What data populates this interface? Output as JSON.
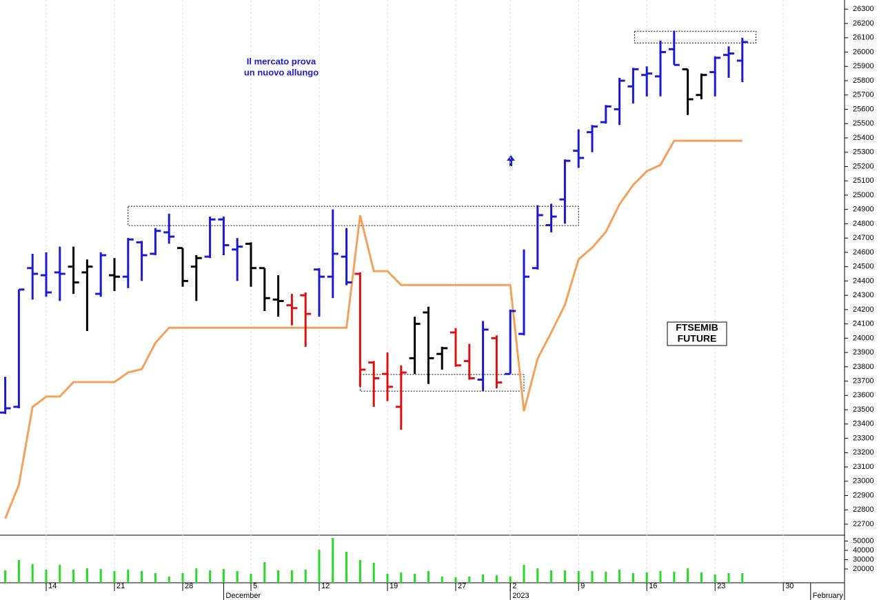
{
  "chart_data": [
    {
      "type": "ohlc",
      "categories": [
        null,
        null,
        null,
        "14",
        null,
        null,
        null,
        null,
        "21",
        null,
        null,
        null,
        null,
        "28",
        null,
        null,
        null,
        null,
        "5",
        null,
        null,
        null,
        null,
        "12",
        null,
        null,
        null,
        null,
        "19",
        null,
        null,
        null,
        null,
        "27",
        null,
        null,
        null,
        "2",
        null,
        null,
        null,
        null,
        "9",
        null,
        null,
        null,
        null,
        "16",
        null,
        null,
        null,
        null,
        "23",
        null,
        null,
        null,
        null,
        "30",
        null,
        null
      ],
      "months": [
        {
          "label": "December",
          "category": 16
        },
        {
          "label": "2023",
          "category": 37
        },
        {
          "label": "February",
          "category": 59
        }
      ],
      "open": [
        23480,
        23520,
        24490,
        24440,
        24460,
        24500,
        24460,
        24310,
        24440,
        24430,
        24670,
        24590,
        24740,
        24630,
        24500,
        24570,
        24830,
        24620,
        24660,
        24490,
        24270,
        24230,
        24300,
        24480,
        24430,
        24570,
        24450,
        23830,
        23750,
        23520,
        23860,
        24180,
        23890,
        24040,
        23840,
        23710,
        24000,
        23750,
        24030,
        24490,
        24790,
        24970,
        25310,
        25440,
        25510,
        25600,
        25760,
        25840,
        25830,
        26020,
        25880,
        25700,
        25860,
        25980,
        25940,
        null,
        null,
        null,
        null,
        null
      ],
      "high": [
        23730,
        24340,
        24590,
        24600,
        24640,
        24640,
        24550,
        24600,
        24560,
        24700,
        24680,
        24770,
        24870,
        24630,
        24580,
        24850,
        24850,
        24700,
        24670,
        24490,
        24440,
        24310,
        24320,
        24490,
        24900,
        24770,
        24460,
        23840,
        23900,
        23810,
        24150,
        24220,
        23940,
        24070,
        23960,
        24120,
        24020,
        24200,
        24620,
        24930,
        24940,
        25250,
        25460,
        25490,
        25630,
        25820,
        25890,
        25900,
        26080,
        26150,
        25880,
        25850,
        25970,
        26040,
        26100,
        null,
        null,
        null,
        null,
        null
      ],
      "low": [
        23470,
        23510,
        24270,
        24290,
        24260,
        24310,
        24050,
        24290,
        24330,
        24350,
        24400,
        24580,
        24660,
        24360,
        24260,
        24560,
        24580,
        24400,
        24360,
        24190,
        24150,
        24090,
        23940,
        24150,
        24280,
        24370,
        23660,
        23520,
        23560,
        23360,
        23750,
        23680,
        23780,
        23800,
        23710,
        23630,
        23650,
        23750,
        24020,
        24480,
        24740,
        24800,
        25190,
        25300,
        25500,
        25490,
        25640,
        25690,
        25690,
        25910,
        25560,
        25670,
        25690,
        25820,
        25790,
        null,
        null,
        null,
        null,
        null
      ],
      "close": [
        23510,
        24340,
        24450,
        24320,
        24450,
        24390,
        24500,
        24580,
        24430,
        24690,
        24580,
        24750,
        24710,
        24400,
        24560,
        24830,
        24650,
        24640,
        24490,
        24280,
        24260,
        24210,
        24170,
        24430,
        24590,
        24390,
        23780,
        23720,
        23660,
        23760,
        24100,
        23860,
        23930,
        23810,
        23720,
        24060,
        23690,
        24190,
        24430,
        24860,
        24850,
        25240,
        25260,
        25480,
        25620,
        25800,
        25880,
        25850,
        26000,
        25910,
        25670,
        25840,
        25960,
        25990,
        26070,
        null,
        null,
        null,
        null,
        null
      ],
      "colors": [
        "#1a1ad6",
        "#1a1ad6",
        "#1a1ad6",
        "#1a1ad6",
        "#1a1ad6",
        "#000000",
        "#000000",
        "#1a1ad6",
        "#000000",
        "#1a1ad6",
        "#1a1ad6",
        "#1a1ad6",
        "#1a1ad6",
        "#000000",
        "#000000",
        "#1a1ad6",
        "#1a1ad6",
        "#1a1ad6",
        "#000000",
        "#000000",
        "#000000",
        "#e01010",
        "#e01010",
        "#1a1ad6",
        "#1a1ad6",
        "#1a1ad6",
        "#e01010",
        "#e01010",
        "#e01010",
        "#e01010",
        "#000000",
        "#000000",
        "#000000",
        "#e01010",
        "#e01010",
        "#1a1ad6",
        "#e01010",
        "#1a1ad6",
        "#1a1ad6",
        "#1a1ad6",
        "#1a1ad6",
        "#1a1ad6",
        "#1a1ad6",
        "#1a1ad6",
        "#1a1ad6",
        "#1a1ad6",
        "#1a1ad6",
        "#1a1ad6",
        "#1a1ad6",
        "#1a1ad6",
        "#000000",
        "#000000",
        "#1a1ad6",
        "#1a1ad6",
        "#1a1ad6",
        null,
        null,
        null,
        null,
        null
      ],
      "line": {
        "color": "#f5a05a",
        "values": [
          22739,
          22975,
          23519,
          23592,
          23592,
          23693,
          23693,
          23693,
          23693,
          23760,
          23784,
          23967,
          24073,
          24073,
          24073,
          24073,
          24073,
          24073,
          24073,
          24073,
          24073,
          24073,
          24073,
          24073,
          24073,
          24073,
          24859,
          24469,
          24469,
          24372,
          24372,
          24372,
          24372,
          24372,
          24372,
          24372,
          24372,
          24372,
          23490,
          23857,
          24040,
          24233,
          24551,
          24633,
          24743,
          24936,
          25071,
          25167,
          25211,
          25380,
          25380,
          25380,
          25380,
          25380,
          25380,
          null,
          null,
          null,
          null,
          null
        ]
      },
      "zones": [
        {
          "start": 9,
          "end": 42,
          "high": 24922,
          "low": 24787
        },
        {
          "start": 26,
          "end": 38,
          "high": 23746,
          "low": 23630
        },
        {
          "start": 46.1,
          "end": 55,
          "high": 26146,
          "low": 26064
        }
      ],
      "annotations": [
        "Il mercato prova",
        "un nuovo allungo"
      ],
      "label_box": [
        "FTSEMIB",
        "FUTURE"
      ],
      "ylim": [
        22623,
        26364
      ],
      "yticks": [
        22700,
        22800,
        22900,
        23000,
        23100,
        23200,
        23300,
        23400,
        23500,
        23600,
        23700,
        23800,
        23900,
        24000,
        24100,
        24200,
        24300,
        24400,
        24500,
        24600,
        24700,
        24800,
        24900,
        25000,
        25100,
        25200,
        25300,
        25400,
        25500,
        25600,
        25700,
        25800,
        25900,
        26000,
        26100,
        26200,
        26300
      ]
    },
    {
      "type": "bar",
      "color": "#22dd22",
      "values": [
        18500,
        29600,
        25200,
        19300,
        24400,
        19300,
        20700,
        20000,
        17800,
        19300,
        17800,
        15600,
        11900,
        15600,
        20700,
        18500,
        20000,
        17800,
        14800,
        27400,
        18500,
        18500,
        19300,
        40700,
        53300,
        38500,
        29600,
        26700,
        14800,
        16300,
        14800,
        17800,
        11900,
        11100,
        11900,
        14100,
        13300,
        11900,
        24400,
        20700,
        18500,
        18500,
        17800,
        17800,
        17000,
        19300,
        15600,
        16300,
        17800,
        17000,
        20700,
        16300,
        14100,
        15600,
        15600,
        null,
        null,
        null,
        null,
        null
      ],
      "ylim": [
        5200,
        56300
      ],
      "yticks": [
        20000,
        30000,
        40000,
        50000
      ]
    }
  ]
}
